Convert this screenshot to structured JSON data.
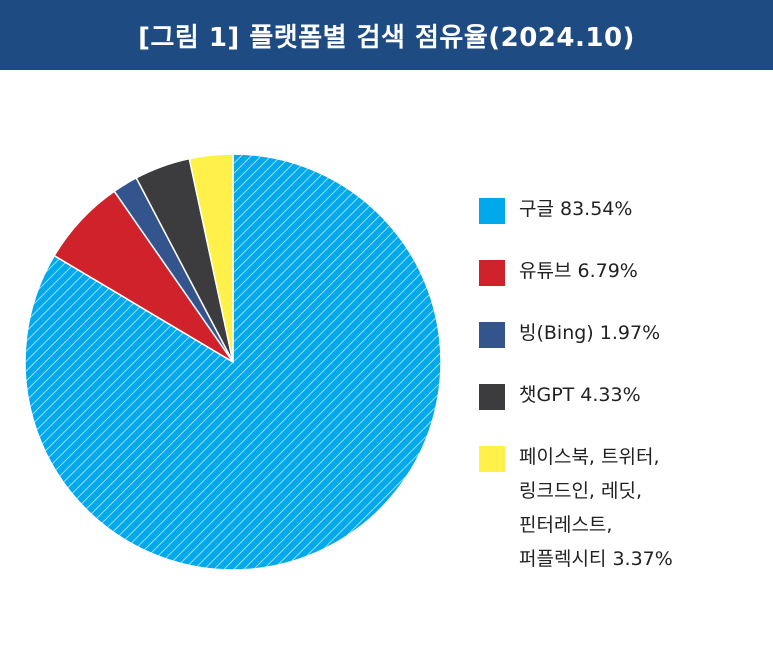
{
  "header": {
    "title": "[그림 1] 플랫폼별 검색 점유율(2024.10)"
  },
  "chart_data": {
    "type": "pie",
    "title": "[그림 1] 플랫폼별 검색 점유율(2024.10)",
    "start_angle_deg": 0,
    "direction": "clockwise",
    "slices": [
      {
        "label_lines": [
          "구글 83.54%"
        ],
        "value": 83.54,
        "color": "#00a9ec",
        "hatched": true
      },
      {
        "label_lines": [
          "유튜브 6.79%"
        ],
        "value": 6.79,
        "color": "#d0222a",
        "hatched": false
      },
      {
        "label_lines": [
          "빙(Bing) 1.97%"
        ],
        "value": 1.97,
        "color": "#33548c",
        "hatched": false
      },
      {
        "label_lines": [
          "챗GPT 4.33%"
        ],
        "value": 4.33,
        "color": "#3c3c3e",
        "hatched": false
      },
      {
        "label_lines": [
          "페이스북, 트위터,",
          "링크드인, 레딧,",
          "핀터레스트,",
          "퍼플렉시티 3.37%"
        ],
        "value": 3.37,
        "color": "#fff04a",
        "hatched": false
      }
    ],
    "legend_position": "right"
  }
}
